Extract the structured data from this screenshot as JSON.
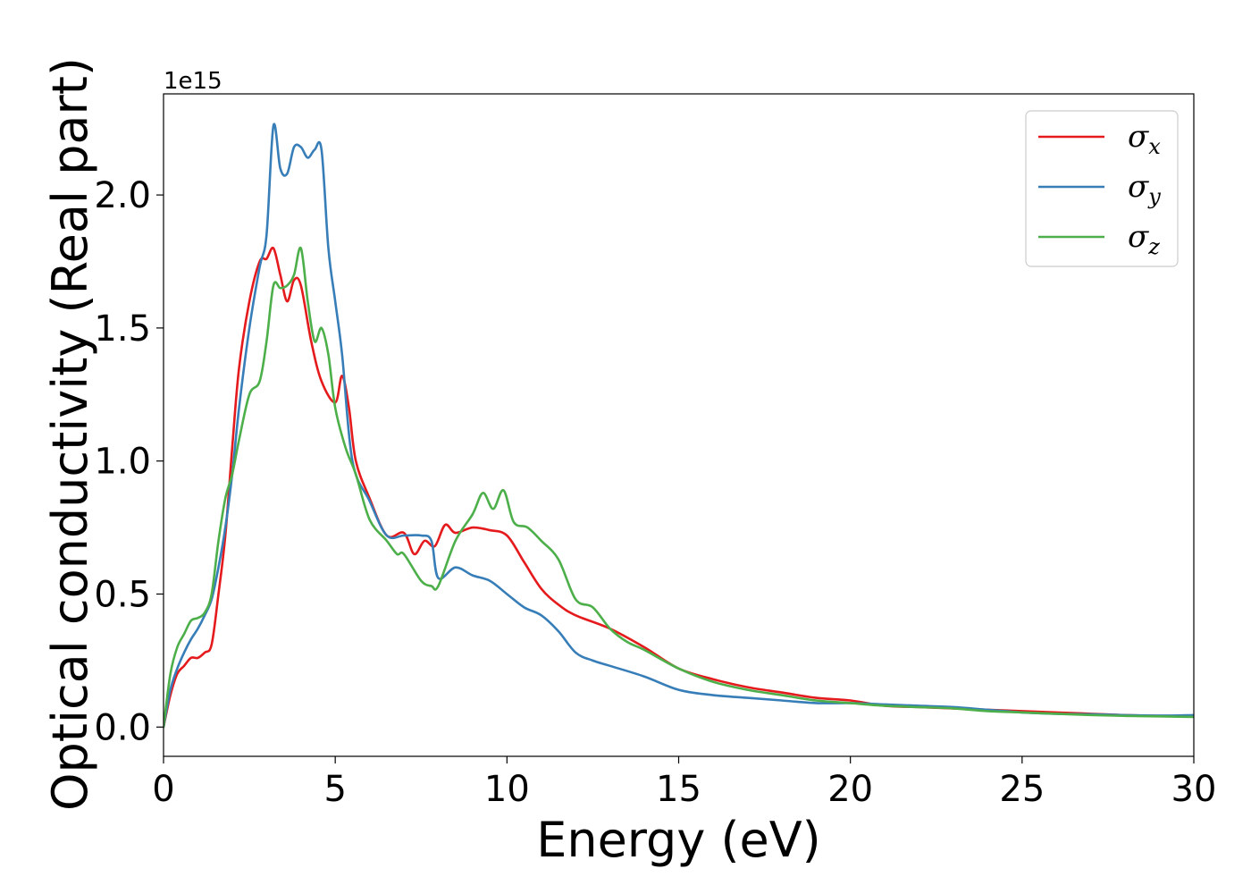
{
  "chart_data": {
    "type": "line",
    "xlabel": "Energy (eV)",
    "ylabel": "Optical conductivity (Real part)",
    "y_offset_label": "1e15",
    "xlim": [
      0,
      30
    ],
    "ylim": [
      -0.11,
      2.38
    ],
    "x_ticks": [
      0,
      5,
      10,
      15,
      20,
      25,
      30
    ],
    "x_tick_labels": [
      "0",
      "5",
      "10",
      "15",
      "20",
      "25",
      "30"
    ],
    "y_ticks": [
      0.0,
      0.5,
      1.0,
      1.5,
      2.0
    ],
    "y_tick_labels": [
      "0.0",
      "0.5",
      "1.0",
      "1.5",
      "2.0"
    ],
    "grid": false,
    "legend_position": "top-right",
    "series": [
      {
        "name": "σx",
        "symbol": "σ",
        "subscript": "x",
        "color": "#e41a1c",
        "x": [
          0,
          0.2,
          0.4,
          0.6,
          0.8,
          1.0,
          1.2,
          1.4,
          1.6,
          1.8,
          2.0,
          2.2,
          2.5,
          2.8,
          3.0,
          3.2,
          3.4,
          3.6,
          3.8,
          4.0,
          4.3,
          4.6,
          5.0,
          5.2,
          5.4,
          5.6,
          6.0,
          6.5,
          7.0,
          7.3,
          7.6,
          7.9,
          8.2,
          8.5,
          9.0,
          9.5,
          10.0,
          10.5,
          11.0,
          11.5,
          12.0,
          13.0,
          14.0,
          15.0,
          16.0,
          17.0,
          18.0,
          19.0,
          20.0,
          21.0,
          22.0,
          23.0,
          24.0,
          25.0,
          26.0,
          27.0,
          28.0,
          29.0,
          30.0
        ],
        "y": [
          0,
          0.12,
          0.2,
          0.23,
          0.26,
          0.26,
          0.28,
          0.31,
          0.5,
          0.72,
          1.05,
          1.35,
          1.6,
          1.75,
          1.76,
          1.8,
          1.7,
          1.6,
          1.68,
          1.66,
          1.45,
          1.3,
          1.22,
          1.32,
          1.2,
          1.0,
          0.86,
          0.72,
          0.73,
          0.65,
          0.7,
          0.68,
          0.76,
          0.73,
          0.75,
          0.74,
          0.72,
          0.62,
          0.52,
          0.46,
          0.42,
          0.37,
          0.3,
          0.22,
          0.18,
          0.15,
          0.13,
          0.11,
          0.1,
          0.08,
          0.075,
          0.07,
          0.065,
          0.06,
          0.055,
          0.05,
          0.045,
          0.042,
          0.04
        ]
      },
      {
        "name": "σy",
        "symbol": "σ",
        "subscript": "y",
        "color": "#377eb8",
        "x": [
          0,
          0.2,
          0.4,
          0.6,
          0.8,
          1.0,
          1.2,
          1.4,
          1.6,
          1.8,
          2.0,
          2.2,
          2.5,
          2.8,
          3.0,
          3.2,
          3.4,
          3.6,
          3.8,
          4.0,
          4.2,
          4.4,
          4.6,
          4.8,
          5.0,
          5.2,
          5.5,
          6.0,
          6.5,
          7.0,
          7.5,
          7.8,
          8.0,
          8.5,
          9.0,
          9.5,
          10.0,
          10.5,
          11.0,
          11.5,
          12.0,
          12.5,
          13.0,
          14.0,
          15.0,
          16.0,
          17.0,
          18.0,
          19.0,
          20.0,
          21.0,
          22.0,
          23.0,
          24.0,
          25.0,
          26.0,
          27.0,
          28.0,
          29.0,
          30.0
        ],
        "y": [
          0,
          0.14,
          0.22,
          0.28,
          0.33,
          0.37,
          0.42,
          0.48,
          0.6,
          0.75,
          0.95,
          1.2,
          1.5,
          1.73,
          1.85,
          2.26,
          2.1,
          2.08,
          2.18,
          2.18,
          2.14,
          2.17,
          2.17,
          1.8,
          1.6,
          1.4,
          1.0,
          0.85,
          0.72,
          0.72,
          0.72,
          0.7,
          0.56,
          0.6,
          0.57,
          0.55,
          0.5,
          0.45,
          0.42,
          0.36,
          0.28,
          0.25,
          0.23,
          0.19,
          0.14,
          0.12,
          0.11,
          0.1,
          0.09,
          0.09,
          0.085,
          0.08,
          0.075,
          0.065,
          0.055,
          0.05,
          0.048,
          0.045,
          0.043,
          0.045
        ]
      },
      {
        "name": "σz",
        "symbol": "σ",
        "subscript": "z",
        "color": "#4daf4a",
        "x": [
          0,
          0.2,
          0.4,
          0.6,
          0.8,
          1.0,
          1.2,
          1.4,
          1.6,
          1.8,
          2.0,
          2.2,
          2.5,
          2.8,
          3.0,
          3.2,
          3.4,
          3.6,
          3.8,
          4.0,
          4.2,
          4.4,
          4.6,
          4.8,
          5.0,
          5.3,
          5.6,
          6.0,
          6.5,
          6.8,
          7.0,
          7.5,
          7.8,
          8.0,
          8.5,
          9.0,
          9.3,
          9.6,
          9.9,
          10.2,
          10.6,
          11.0,
          11.5,
          12.0,
          12.5,
          13.0,
          13.5,
          14.0,
          15.0,
          16.0,
          17.0,
          18.0,
          19.0,
          20.0,
          21.0,
          22.0,
          23.0,
          24.0,
          25.0,
          26.0,
          27.0,
          28.0,
          29.0,
          30.0
        ],
        "y": [
          0,
          0.2,
          0.3,
          0.35,
          0.4,
          0.41,
          0.43,
          0.5,
          0.7,
          0.86,
          0.95,
          1.08,
          1.25,
          1.3,
          1.45,
          1.66,
          1.65,
          1.66,
          1.7,
          1.8,
          1.6,
          1.45,
          1.5,
          1.4,
          1.2,
          1.05,
          0.95,
          0.78,
          0.7,
          0.65,
          0.65,
          0.55,
          0.53,
          0.53,
          0.7,
          0.8,
          0.88,
          0.82,
          0.89,
          0.77,
          0.75,
          0.7,
          0.63,
          0.48,
          0.45,
          0.37,
          0.32,
          0.29,
          0.22,
          0.17,
          0.14,
          0.12,
          0.1,
          0.09,
          0.08,
          0.075,
          0.07,
          0.06,
          0.055,
          0.05,
          0.045,
          0.042,
          0.04,
          0.038
        ]
      }
    ]
  }
}
